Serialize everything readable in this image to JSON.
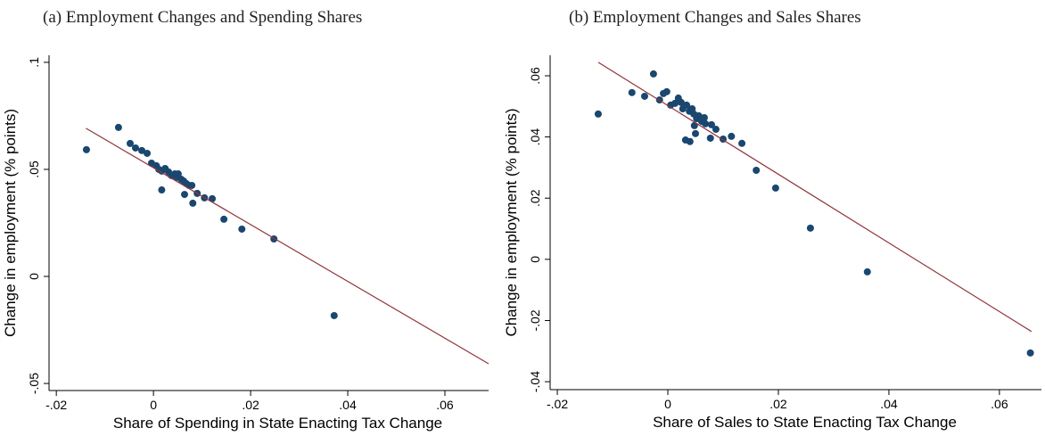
{
  "chart_data": [
    {
      "type": "scatter",
      "title": "(a) Employment Changes and Spending Shares",
      "x_label": "Share of Spending in State Enacting Tax Change",
      "y_label": "Change in employment (% points)",
      "color": "#1a476f",
      "x": [
        -0.0138,
        -0.0072,
        -0.0048,
        -0.0037,
        -0.0024,
        -0.0013,
        -0.0004,
        0.0006,
        0.0011,
        0.0017,
        0.0024,
        0.0031,
        0.0037,
        0.0044,
        0.0048,
        0.0051,
        0.0057,
        0.0062,
        0.0068,
        0.0073,
        0.0017,
        0.0064,
        0.0079,
        0.009,
        0.0081,
        0.0105,
        0.0121,
        0.0145,
        0.0182,
        0.0248,
        0.0372
      ],
      "values": [
        0.0592,
        0.0696,
        0.0621,
        0.06,
        0.0588,
        0.0575,
        0.0529,
        0.0517,
        0.05,
        0.0492,
        0.0504,
        0.0488,
        0.0471,
        0.0479,
        0.0463,
        0.0479,
        0.0454,
        0.0446,
        0.0433,
        0.0425,
        0.0404,
        0.0383,
        0.0425,
        0.0388,
        0.0342,
        0.0367,
        0.0363,
        0.0267,
        0.0221,
        0.0175,
        -0.0183
      ],
      "fit_line": {
        "x": [
          -0.0139,
          0.069
        ],
        "values": [
          0.0692,
          -0.0408
        ],
        "color": "#90353b"
      },
      "xlim": [
        -0.0215,
        0.069
      ],
      "ylim": [
        -0.0533,
        0.1033
      ],
      "xticks": [
        {
          "value": -0.02,
          "label": "-.02"
        },
        0,
        {
          "value": 0.02,
          "label": ".02"
        },
        {
          "value": 0.04,
          "label": ".04"
        },
        {
          "value": 0.06,
          "label": ".06"
        }
      ],
      "yticks": [
        {
          "value": -0.05,
          "label": "-.05"
        },
        0,
        {
          "value": 0.05,
          "label": ".05"
        },
        {
          "value": 0.1,
          "label": ".1"
        }
      ]
    },
    {
      "type": "scatter",
      "title": "(b) Employment Changes and Sales Shares",
      "x_label": "Share of Sales to State Enacting Tax Change",
      "y_label": "Change in employment (% points)",
      "color": "#1a476f",
      "x": [
        -0.0126,
        -0.0065,
        -0.0042,
        -0.0026,
        -0.0015,
        -0.0008,
        -0.0002,
        0.0005,
        0.0013,
        0.0019,
        0.0024,
        0.0027,
        0.0034,
        0.0039,
        0.0044,
        0.0047,
        0.0052,
        0.0056,
        0.0061,
        0.0066,
        0.0068,
        0.0048,
        0.0079,
        0.0087,
        0.005,
        0.0032,
        0.004,
        0.0077,
        0.01,
        0.0115,
        0.0134,
        0.016,
        0.0195,
        0.0258,
        0.0361,
        0.0656
      ],
      "values": [
        0.0475,
        0.0545,
        0.0533,
        0.0606,
        0.0521,
        0.0542,
        0.0548,
        0.0504,
        0.051,
        0.0527,
        0.0513,
        0.0492,
        0.0504,
        0.0484,
        0.0492,
        0.0475,
        0.046,
        0.0469,
        0.0451,
        0.0463,
        0.0443,
        0.0437,
        0.044,
        0.0425,
        0.0411,
        0.039,
        0.0385,
        0.0396,
        0.0393,
        0.0402,
        0.0379,
        0.0291,
        0.0233,
        0.0102,
        -0.0041,
        -0.0306
      ],
      "fit_line": {
        "x": [
          -0.0126,
          0.0658
        ],
        "values": [
          0.0644,
          -0.0236
        ],
        "color": "#90353b"
      },
      "xlim": [
        -0.0213,
        0.0676
      ],
      "ylim": [
        -0.0426,
        0.0667
      ],
      "xticks": [
        {
          "value": -0.02,
          "label": "-.02"
        },
        0,
        {
          "value": 0.02,
          "label": ".02"
        },
        {
          "value": 0.04,
          "label": ".04"
        },
        {
          "value": 0.06,
          "label": ".06"
        }
      ],
      "yticks": [
        {
          "value": -0.04,
          "label": "-.04"
        },
        {
          "value": -0.02,
          "label": "-.02"
        },
        0,
        {
          "value": 0.02,
          "label": ".02"
        },
        {
          "value": 0.04,
          "label": ".04"
        },
        {
          "value": 0.06,
          "label": ".06"
        }
      ]
    }
  ]
}
